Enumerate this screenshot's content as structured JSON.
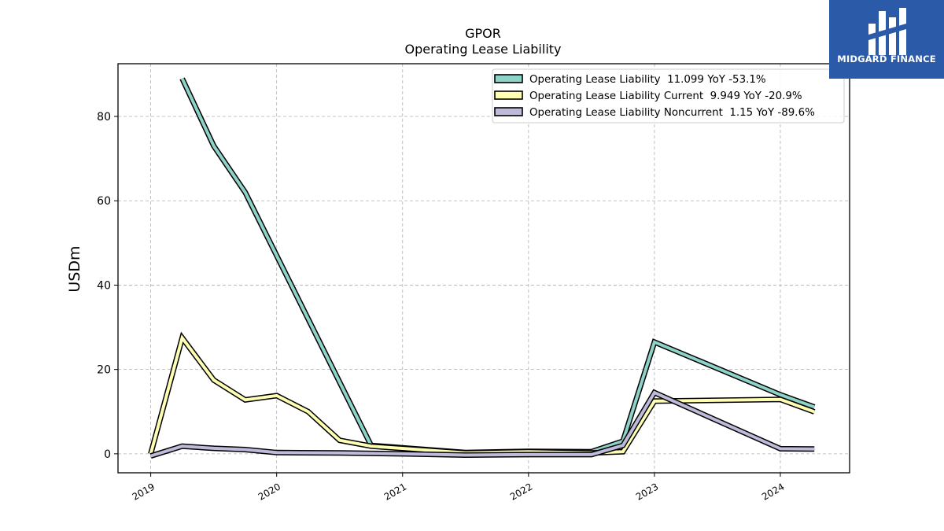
{
  "logo": {
    "text": "MIDGARD FINANCE",
    "bg_color": "#2a5aa8"
  },
  "chart_data": {
    "type": "line",
    "title": "GPOR",
    "subtitle": "Operating Lease Liability",
    "xlabel": "",
    "ylabel": "USDm",
    "xlim": [
      2018.74,
      2024.55
    ],
    "ylim": [
      -4.5,
      92.5
    ],
    "x_ticks": [
      {
        "value": 2019,
        "label": "2019"
      },
      {
        "value": 2020,
        "label": "2020"
      },
      {
        "value": 2021,
        "label": "2021"
      },
      {
        "value": 2022,
        "label": "2022"
      },
      {
        "value": 2023,
        "label": "2023"
      },
      {
        "value": 2024,
        "label": "2024"
      }
    ],
    "y_ticks": [
      0,
      20,
      40,
      60,
      80
    ],
    "grid": true,
    "legend_position": "top-right",
    "series": [
      {
        "name": "Operating Lease Liability  11.099 YoY -53.1%",
        "color": "#8dd3c7",
        "x": [
          2019.25,
          2019.5,
          2019.75,
          2020.75,
          2021.5,
          2022.0,
          2022.5,
          2022.75,
          2023.0,
          2024.0,
          2024.27
        ],
        "y": [
          89.0,
          73.0,
          62.0,
          2.0,
          0.3,
          0.6,
          0.5,
          3.0,
          26.5,
          14.0,
          11.099
        ]
      },
      {
        "name": "Operating Lease Liability Current  9.949 YoY -20.9%",
        "color": "#ffffb3",
        "x": [
          2019.0,
          2019.25,
          2019.5,
          2019.75,
          2020.0,
          2020.25,
          2020.5,
          2020.75,
          2021.5,
          2022.0,
          2022.5,
          2022.75,
          2023.0,
          2024.0,
          2024.27
        ],
        "y": [
          0.0,
          27.5,
          17.5,
          12.8,
          13.8,
          10.0,
          3.2,
          1.8,
          0.2,
          0.5,
          0.2,
          0.5,
          12.5,
          12.9,
          9.949
        ]
      },
      {
        "name": "Operating Lease Liability Noncurrent  1.15 YoY -89.6%",
        "color": "#bebada",
        "x": [
          2019.0,
          2019.25,
          2019.5,
          2019.75,
          2020.0,
          2020.5,
          2021.0,
          2021.5,
          2022.0,
          2022.5,
          2022.75,
          2023.0,
          2024.0,
          2024.27
        ],
        "y": [
          -0.5,
          1.8,
          1.3,
          1.0,
          0.3,
          0.2,
          0.0,
          -0.3,
          -0.2,
          -0.2,
          2.0,
          14.5,
          1.2,
          1.15
        ]
      }
    ]
  }
}
